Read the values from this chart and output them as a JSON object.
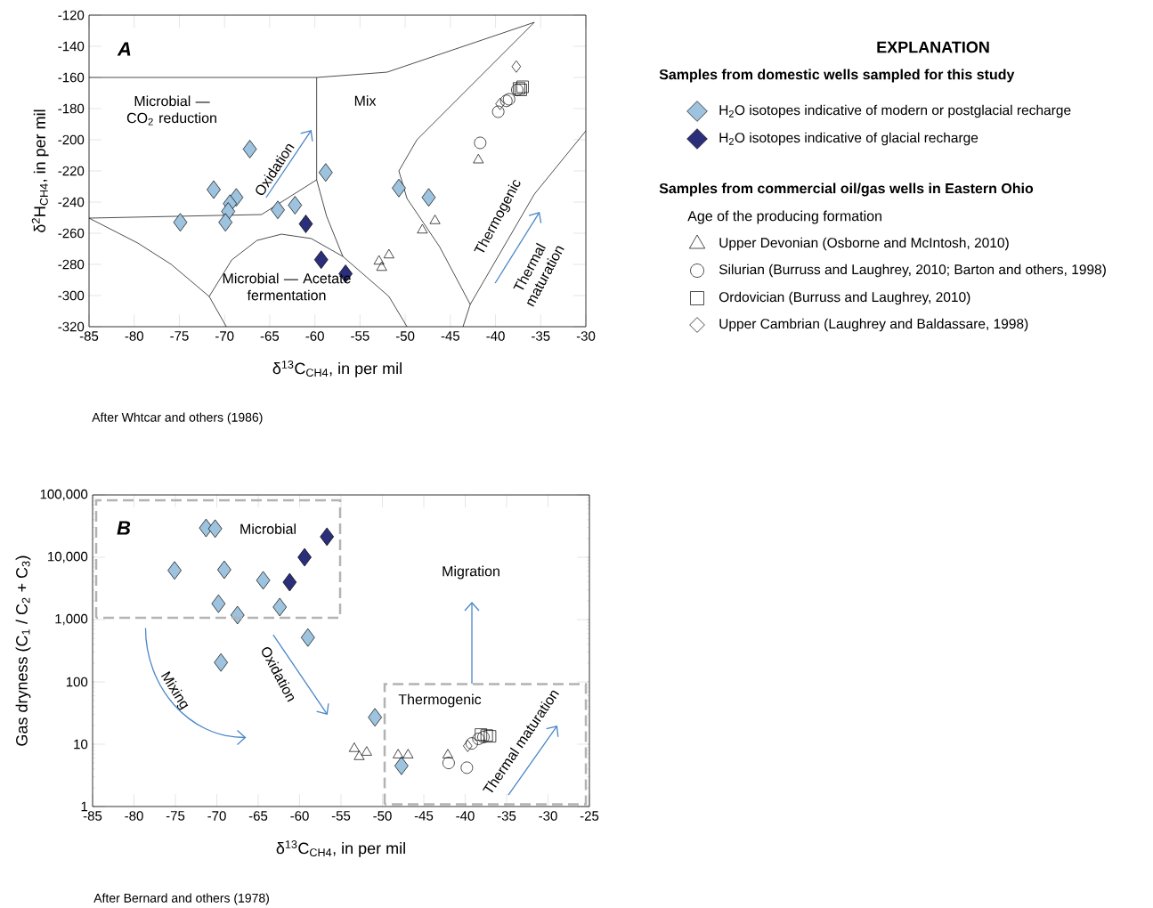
{
  "chart_data": [
    {
      "type": "scatter",
      "xlabel": "δ$^{13}$C$_{CH4}$, in per mil",
      "ylabel": "δ$^{2}$H$_{CH4}$, in per mil",
      "xlim": [
        -85,
        -30
      ],
      "ylim": [
        -320,
        -120
      ],
      "xticks": [
        -85,
        -80,
        -75,
        -70,
        -65,
        -60,
        -55,
        -50,
        -45,
        -40,
        -35,
        -30
      ],
      "yticks": [
        -320,
        -300,
        -280,
        -260,
        -240,
        -220,
        -200,
        -180,
        -160,
        -140,
        -120
      ],
      "legend": "right",
      "legend_title": "EXPLANATION",
      "annotations": [
        "A",
        "Microbial — CO$_{2}$ reduction",
        "Mix",
        "Oxidation",
        "Thermogenic",
        "Thermal maturation",
        "Microbial — Acetate fermentation",
        "After Whtcar and others (1986)",
        "Samples from domestic wells sampled for this study",
        "Samples from commercial oil/gas wells in Eastern Ohio",
        "Age of the producing formation"
      ],
      "series": [
        {
          "name": "H$_{2}$O isotopes indicative of modern or postglacial recharge",
          "color": "#9dc3df",
          "marker": "diamond",
          "x": [
            -67.2,
            -71.2,
            -68.7,
            -69.4,
            -69.6,
            -69.9,
            -74.9,
            -64.1,
            -62.2,
            -58.8,
            -50.7,
            -47.4
          ],
          "values": [
            -206,
            -232,
            -237,
            -241,
            -246,
            -253,
            -253,
            -245,
            -242,
            -221,
            -231,
            -237
          ]
        },
        {
          "name": "H$_{2}$O isotopes indicative of glacial recharge",
          "color": "#2b2f7a",
          "marker": "diamond",
          "x": [
            -61.0,
            -59.3,
            -56.6
          ],
          "values": [
            -254,
            -277,
            -286
          ]
        },
        {
          "name": "Upper Devonian (Osborne and McIntosh, 2010)",
          "color": "#000000",
          "marker": "triangle",
          "x": [
            -41.9,
            -46.7,
            -48.1,
            -52.9,
            -51.8,
            -52.6
          ],
          "values": [
            -213,
            -252,
            -258,
            -278,
            -274,
            -282
          ]
        },
        {
          "name": "Silurian (Burruss and Laughrey, 2010; Barton and others, 1998)",
          "color": "#000000",
          "marker": "circle",
          "x": [
            -41.7,
            -39.7,
            -38.5,
            -38.8,
            -37.6
          ],
          "values": [
            -202,
            -182,
            -174,
            -175,
            -168
          ]
        },
        {
          "name": "Ordovician (Burruss and Laughrey, 2010)",
          "color": "#000000",
          "marker": "square",
          "x": [
            -37.4,
            -37.0,
            -37.2
          ],
          "values": [
            -167,
            -166,
            -168
          ]
        },
        {
          "name": "Upper Cambrian (Laughrey and Baldassare, 1998)",
          "color": "#000000",
          "marker": "diamond",
          "x": [
            -37.7,
            -39.5
          ],
          "values": [
            -153,
            -177
          ]
        },
        {
          "type": "line",
          "color": "#000000",
          "x": [
            -85,
            -59.8,
            -52.0,
            -35.7
          ],
          "values": [
            -160,
            -160,
            -156.6,
            -124.6
          ]
        },
        {
          "type": "line",
          "color": "#000000",
          "x": [
            -59.8,
            -59.8,
            -58.7,
            -56.9,
            -51.8,
            -49.8
          ],
          "values": [
            -160,
            -225.7,
            -249.1,
            -274.9,
            -300.6,
            -320
          ]
        },
        {
          "type": "line",
          "color": "#000000",
          "x": [
            -85,
            -65.9,
            -59.8
          ],
          "values": [
            -250.3,
            -248,
            -225.7
          ]
        },
        {
          "type": "line",
          "color": "#000000",
          "x": [
            -85,
            -79.6,
            -75.9,
            -71.7,
            -69.8
          ],
          "values": [
            -250.3,
            -266.3,
            -280,
            -300.6,
            -320
          ]
        },
        {
          "type": "line",
          "color": "#000000",
          "x": [
            -71.7,
            -69.2,
            -66.4,
            -63.7,
            -60.4,
            -56.9
          ],
          "values": [
            -300.6,
            -277.1,
            -264.6,
            -260.6,
            -263.4,
            -274.9
          ]
        },
        {
          "type": "line",
          "color": "#000000",
          "x": [
            -35.7,
            -48.7,
            -50.7,
            -49.8,
            -46.2,
            -42.8,
            -43.6
          ],
          "values": [
            -124.6,
            -200,
            -220,
            -237.7,
            -268.6,
            -305.7,
            -320
          ]
        },
        {
          "type": "line",
          "color": "#000000",
          "x": [
            -42.8,
            -35.7,
            -30
          ],
          "values": [
            -305.7,
            -234.9,
            -194.3
          ]
        }
      ]
    },
    {
      "type": "scatter",
      "xlabel": "δ$^{13}$C$_{CH4}$, in per mil",
      "ylabel": "Gas dryness (C$_{1}$ / C$_{2}$ + C$_{3}$)",
      "xlim": [
        -85,
        -25
      ],
      "ylim": [
        1,
        100000
      ],
      "log": "y",
      "xticks": [
        -85,
        -80,
        -75,
        -70,
        -65,
        -60,
        -55,
        -50,
        -45,
        -40,
        -35,
        -30,
        -25
      ],
      "yticks": [
        1,
        10,
        100,
        {
          "value": 1000,
          "label": "1,000"
        },
        {
          "value": 10000,
          "label": "10,000"
        },
        {
          "value": 100000,
          "label": "100,000"
        }
      ],
      "annotations": [
        "B",
        "Microbial",
        "Migration",
        "Mixing",
        "Oxidation",
        "Thermogenic",
        "Thermal maturation",
        "After Bernard and others (1978)"
      ],
      "series": [
        {
          "color": "#9dc3df",
          "marker": "diamond",
          "x": [
            -71.3,
            -70.2,
            -75.1,
            -69.1,
            -64.4,
            -69.8,
            -67.5,
            -62.4,
            -59.0,
            -69.5,
            -50.9,
            -47.7
          ],
          "values": [
            29500,
            28800,
            6150,
            6300,
            4270,
            1800,
            1180,
            1590,
            515,
            205,
            27,
            4.5
          ]
        },
        {
          "color": "#2b2f7a",
          "marker": "diamond",
          "x": [
            -56.7,
            -59.4,
            -61.2
          ],
          "values": [
            21400,
            10000,
            3980
          ]
        },
        {
          "color": "#000000",
          "marker": "triangle",
          "x": [
            -53.4,
            -52.8,
            -51.9,
            -48.1,
            -46.9,
            -42.1
          ],
          "values": [
            8.5,
            6.3,
            7.4,
            6.7,
            6.7,
            6.7
          ]
        },
        {
          "color": "#000000",
          "marker": "circle",
          "x": [
            -42.0,
            -39.8,
            -39.2,
            -38.4,
            -37.8
          ],
          "values": [
            5.0,
            4.2,
            10.3,
            12.2,
            13
          ]
        },
        {
          "color": "#000000",
          "marker": "square",
          "x": [
            -38.1,
            -37.4,
            -37.0
          ],
          "values": [
            14.3,
            13.8,
            13.4
          ]
        },
        {
          "color": "#000000",
          "marker": "diamond",
          "x": [
            -39.7
          ],
          "values": [
            9.4
          ]
        }
      ]
    }
  ]
}
